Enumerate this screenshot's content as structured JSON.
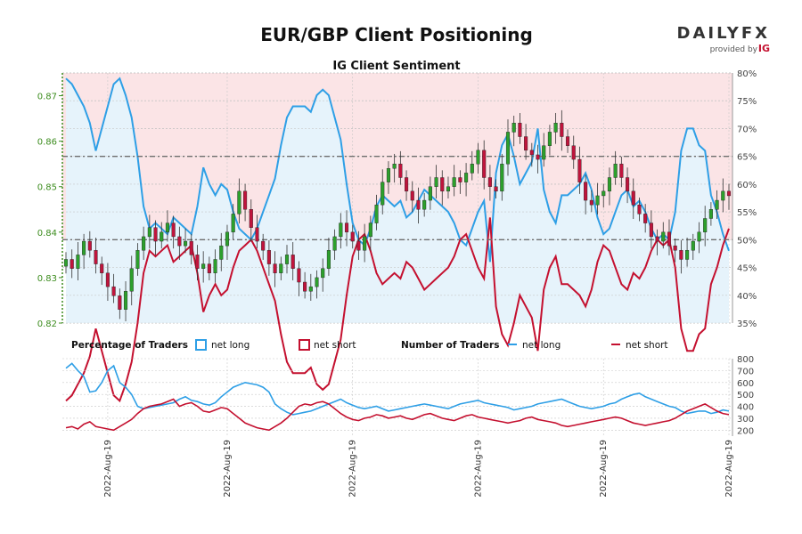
{
  "header": {
    "title": "EUR/GBP Client Positioning",
    "subtitle": "IG Client Sentiment",
    "brand_main": "DAILYFX",
    "brand_sub": "provided by",
    "brand_ig": "IG"
  },
  "legend": {
    "pct_label": "Percentage of Traders",
    "pct_long": "net long",
    "pct_short": "net short",
    "num_label": "Number of Traders",
    "num_long": "net long",
    "num_short": "net short"
  },
  "colors": {
    "long": "#2e9fe6",
    "short": "#c4102f",
    "candle_up": "#2ca02c",
    "candle_down": "#c0143c",
    "long_fill": "#e6f3fb",
    "short_fill": "#fbe4e6",
    "left_axis": "#3c8c1e"
  },
  "chart_data": [
    {
      "type": "candlestick",
      "title": "IG Client Sentiment",
      "y_left_ticks": [
        "0.82",
        "0.83",
        "0.84",
        "0.85",
        "0.86",
        "0.87"
      ],
      "y_left_range": [
        0.82,
        0.875
      ],
      "y_right_ticks": [
        "35%",
        "40%",
        "45%",
        "50%",
        "55%",
        "60%",
        "65%",
        "70%",
        "75%",
        "80%"
      ],
      "y_right_range": [
        35,
        80
      ],
      "reference_lines_pct": [
        50,
        65
      ],
      "x_tick_labels": [
        "2022-Aug-19",
        "2022-Aug-19",
        "2022-Aug-19",
        "2022-Aug-19",
        "2022-Aug-19",
        "2022-Aug-19"
      ],
      "price_close": [
        0.834,
        0.832,
        0.835,
        0.838,
        0.836,
        0.833,
        0.831,
        0.828,
        0.826,
        0.823,
        0.827,
        0.832,
        0.836,
        0.839,
        0.841,
        0.838,
        0.84,
        0.842,
        0.839,
        0.837,
        0.838,
        0.835,
        0.832,
        0.833,
        0.831,
        0.834,
        0.837,
        0.84,
        0.844,
        0.849,
        0.845,
        0.841,
        0.838,
        0.836,
        0.833,
        0.831,
        0.833,
        0.835,
        0.832,
        0.829,
        0.827,
        0.828,
        0.83,
        0.832,
        0.836,
        0.839,
        0.842,
        0.84,
        0.838,
        0.836,
        0.839,
        0.842,
        0.846,
        0.851,
        0.854,
        0.855,
        0.852,
        0.849,
        0.847,
        0.845,
        0.847,
        0.85,
        0.852,
        0.849,
        0.85,
        0.852,
        0.851,
        0.853,
        0.855,
        0.858,
        0.852,
        0.85,
        0.849,
        0.855,
        0.862,
        0.864,
        0.861,
        0.858,
        0.857,
        0.856,
        0.859,
        0.862,
        0.864,
        0.861,
        0.859,
        0.856,
        0.851,
        0.847,
        0.846,
        0.848,
        0.849,
        0.852,
        0.855,
        0.852,
        0.849,
        0.846,
        0.844,
        0.842,
        0.839,
        0.838,
        0.84,
        0.837,
        0.836,
        0.834,
        0.836,
        0.838,
        0.84,
        0.843,
        0.845,
        0.847,
        0.849,
        0.848
      ],
      "pct_long": [
        79,
        78,
        76,
        74,
        71,
        66,
        70,
        74,
        78,
        79,
        76,
        72,
        65,
        56,
        52,
        53,
        52,
        51,
        54,
        53,
        52,
        51,
        56,
        63,
        60,
        58,
        60,
        59,
        55,
        52,
        51,
        50,
        52,
        55,
        58,
        61,
        67,
        72,
        74,
        74,
        74,
        73,
        76,
        77,
        76,
        72,
        68,
        60,
        53,
        50,
        49,
        52,
        56,
        58,
        57,
        56,
        57,
        54,
        55,
        57,
        59,
        58,
        57,
        56,
        55,
        53,
        50,
        49,
        52,
        55,
        57,
        46,
        62,
        67,
        69,
        65,
        60,
        62,
        64,
        70,
        59,
        55,
        53,
        58,
        58,
        59,
        60,
        62,
        59,
        54,
        51,
        52,
        55,
        58,
        59,
        56,
        57,
        55,
        52,
        50,
        51,
        50,
        55,
        66,
        70,
        70,
        67,
        66,
        58,
        55,
        51,
        48
      ],
      "pct_short": [
        21,
        22,
        24,
        26,
        29,
        34,
        30,
        26,
        22,
        21,
        24,
        28,
        35,
        44,
        48,
        47,
        48,
        49,
        46,
        47,
        48,
        49,
        44,
        37,
        40,
        42,
        40,
        41,
        45,
        48,
        49,
        50,
        48,
        45,
        42,
        39,
        33,
        28,
        26,
        26,
        26,
        27,
        24,
        23,
        24,
        28,
        32,
        40,
        47,
        50,
        51,
        48,
        44,
        42,
        43,
        44,
        43,
        46,
        45,
        43,
        41,
        42,
        43,
        44,
        45,
        47,
        50,
        51,
        48,
        45,
        43,
        54,
        38,
        33,
        31,
        35,
        40,
        38,
        36,
        30,
        41,
        45,
        47,
        42,
        42,
        41,
        40,
        38,
        41,
        46,
        49,
        48,
        45,
        42,
        41,
        44,
        43,
        45,
        48,
        50,
        49,
        50,
        45,
        34,
        30,
        30,
        33,
        34,
        42,
        45,
        49,
        52
      ]
    },
    {
      "type": "line",
      "title": "Number of Traders",
      "y_ticks": [
        "200",
        "300",
        "400",
        "500",
        "600",
        "700",
        "800"
      ],
      "y_range": [
        150,
        800
      ],
      "series": [
        {
          "name": "net long",
          "values": [
            720,
            760,
            700,
            650,
            520,
            530,
            600,
            700,
            740,
            600,
            560,
            500,
            400,
            380,
            390,
            400,
            410,
            420,
            430,
            460,
            480,
            450,
            440,
            420,
            410,
            430,
            480,
            520,
            560,
            580,
            600,
            590,
            580,
            560,
            520,
            420,
            380,
            350,
            330,
            340,
            350,
            360,
            380,
            400,
            420,
            440,
            460,
            430,
            410,
            390,
            380,
            390,
            400,
            380,
            360,
            370,
            380,
            390,
            400,
            410,
            420,
            410,
            400,
            390,
            380,
            400,
            420,
            430,
            440,
            450,
            430,
            420,
            410,
            400,
            390,
            370,
            380,
            390,
            400,
            420,
            430,
            440,
            450,
            460,
            440,
            420,
            400,
            390,
            380,
            390,
            400,
            420,
            430,
            460,
            480,
            500,
            510,
            480,
            460,
            440,
            420,
            400,
            390,
            360,
            340,
            350,
            360,
            360,
            340,
            350,
            370,
            360
          ]
        },
        {
          "name": "net short",
          "values": [
            220,
            230,
            210,
            250,
            270,
            230,
            220,
            210,
            200,
            230,
            260,
            290,
            340,
            380,
            400,
            410,
            420,
            440,
            460,
            400,
            420,
            430,
            400,
            360,
            350,
            370,
            390,
            380,
            340,
            300,
            260,
            240,
            220,
            210,
            200,
            230,
            260,
            300,
            350,
            400,
            420,
            410,
            430,
            440,
            420,
            380,
            340,
            310,
            290,
            280,
            300,
            310,
            330,
            320,
            300,
            310,
            320,
            300,
            290,
            310,
            330,
            340,
            320,
            300,
            290,
            280,
            300,
            320,
            330,
            310,
            300,
            290,
            280,
            270,
            260,
            270,
            280,
            300,
            310,
            290,
            280,
            270,
            260,
            240,
            230,
            240,
            250,
            260,
            270,
            280,
            290,
            300,
            310,
            300,
            280,
            260,
            250,
            240,
            250,
            260,
            270,
            280,
            300,
            330,
            360,
            380,
            400,
            420,
            390,
            360,
            340,
            330
          ]
        }
      ]
    }
  ]
}
